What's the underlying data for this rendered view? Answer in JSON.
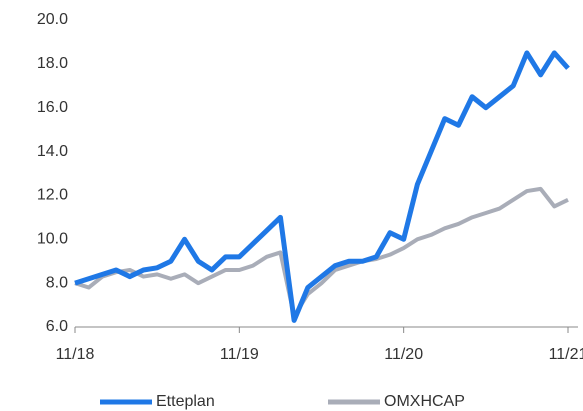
{
  "chart_data": {
    "type": "line",
    "x": [
      "11/18",
      "12/18",
      "1/19",
      "2/19",
      "3/19",
      "4/19",
      "5/19",
      "6/19",
      "7/19",
      "8/19",
      "9/19",
      "10/19",
      "11/19",
      "12/19",
      "1/20",
      "2/20",
      "3/20",
      "4/20",
      "5/20",
      "6/20",
      "7/20",
      "8/20",
      "9/20",
      "10/20",
      "11/20",
      "12/20",
      "1/21",
      "2/21",
      "3/21",
      "4/21",
      "5/21",
      "6/21",
      "7/21",
      "8/21",
      "9/21",
      "10/21",
      "11/21"
    ],
    "xticks": [
      {
        "value": "11/18",
        "label": "11/18"
      },
      {
        "value": "11/19",
        "label": "11/19"
      },
      {
        "value": "11/20",
        "label": "11/20"
      },
      {
        "value": "11/21",
        "label": "11/21"
      }
    ],
    "series": [
      {
        "name": "Etteplan",
        "color": "#1f78e6",
        "values": [
          8.0,
          8.2,
          8.4,
          8.6,
          8.3,
          8.6,
          8.7,
          9.0,
          10.0,
          9.0,
          8.6,
          9.2,
          9.2,
          9.8,
          10.4,
          11.0,
          6.3,
          7.8,
          8.3,
          8.8,
          9.0,
          9.0,
          9.2,
          10.3,
          10.0,
          12.5,
          14.0,
          15.5,
          15.2,
          16.5,
          16.0,
          16.5,
          17.0,
          18.5,
          17.5,
          18.5,
          17.8
        ]
      },
      {
        "name": "OMXHCAP",
        "color": "#a9adb8",
        "values": [
          8.0,
          7.8,
          8.3,
          8.5,
          8.6,
          8.3,
          8.4,
          8.2,
          8.4,
          8.0,
          8.3,
          8.6,
          8.6,
          8.8,
          9.2,
          9.4,
          6.5,
          7.5,
          8.0,
          8.6,
          8.8,
          9.0,
          9.1,
          9.3,
          9.6,
          10.0,
          10.2,
          10.5,
          10.7,
          11.0,
          11.2,
          11.4,
          11.8,
          12.2,
          12.3,
          11.5,
          11.8
        ]
      }
    ],
    "ylim": [
      6,
      20
    ],
    "yticks": [
      {
        "value": 6,
        "label": "6.0"
      },
      {
        "value": 8,
        "label": "8.0"
      },
      {
        "value": 10,
        "label": "10.0"
      },
      {
        "value": 12,
        "label": "12.0"
      },
      {
        "value": 14,
        "label": "14.0"
      },
      {
        "value": 16,
        "label": "16.0"
      },
      {
        "value": 18,
        "label": "18.0"
      },
      {
        "value": 20,
        "label": "20.0"
      }
    ],
    "legend": "bottom"
  }
}
